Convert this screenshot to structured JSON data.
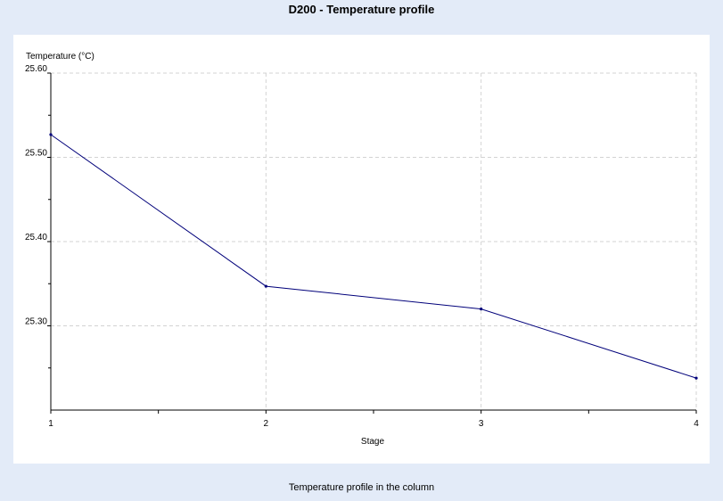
{
  "header": {
    "title": "D200 - Temperature profile"
  },
  "footer": {
    "caption": "Temperature profile in the column"
  },
  "chart_data": {
    "type": "line",
    "title": "D200 - Temperature profile",
    "xlabel": "Stage",
    "ylabel": "Temperature (°C)",
    "x": [
      1,
      2,
      3,
      4
    ],
    "series": [
      {
        "values": [
          25.527,
          25.347,
          25.32,
          25.238
        ]
      }
    ],
    "xlim": [
      1,
      4
    ],
    "ylim": [
      25.2,
      25.6
    ],
    "xticks": [
      "1",
      "2",
      "3",
      "4"
    ],
    "yticks": [
      "25.30",
      "25.40",
      "25.50",
      "25.60"
    ],
    "grid": true,
    "line_color": "#00007a",
    "background": "#e3ebf8"
  }
}
